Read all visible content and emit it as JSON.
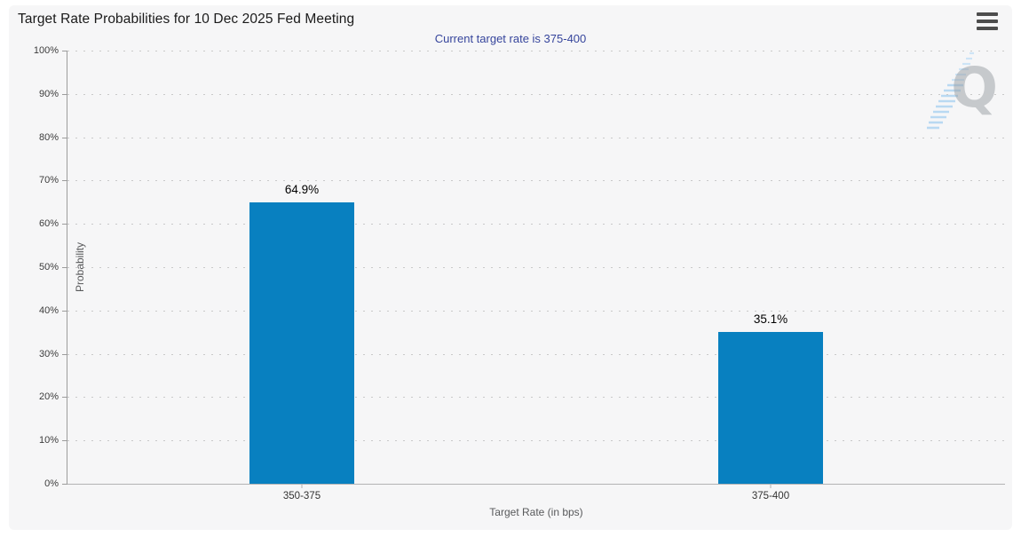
{
  "header": {
    "menu_icon": "hamburger-icon"
  },
  "chart_data": {
    "type": "bar",
    "title": "Target Rate Probabilities for 10 Dec 2025 Fed Meeting",
    "subtitle": "Current target rate is 375-400",
    "categories": [
      "350-375",
      "375-400"
    ],
    "values": [
      64.9,
      35.1
    ],
    "value_labels": [
      "64.9%",
      "35.1%"
    ],
    "xlabel": "Target Rate (in bps)",
    "ylabel": "Probability",
    "ylim": [
      0,
      100
    ],
    "ytick_step": 10,
    "yticks": [
      "0%",
      "10%",
      "20%",
      "30%",
      "40%",
      "50%",
      "60%",
      "70%",
      "80%",
      "90%",
      "100%"
    ],
    "grid": "horizontal-dotted",
    "legend": "none",
    "watermark_letter": "Q",
    "colors": {
      "bar": "#0880c0",
      "subtitle": "#36459c",
      "grid": "#c9c9c9",
      "background": "#f6f6f7",
      "axis": "#9c9c9c"
    }
  }
}
